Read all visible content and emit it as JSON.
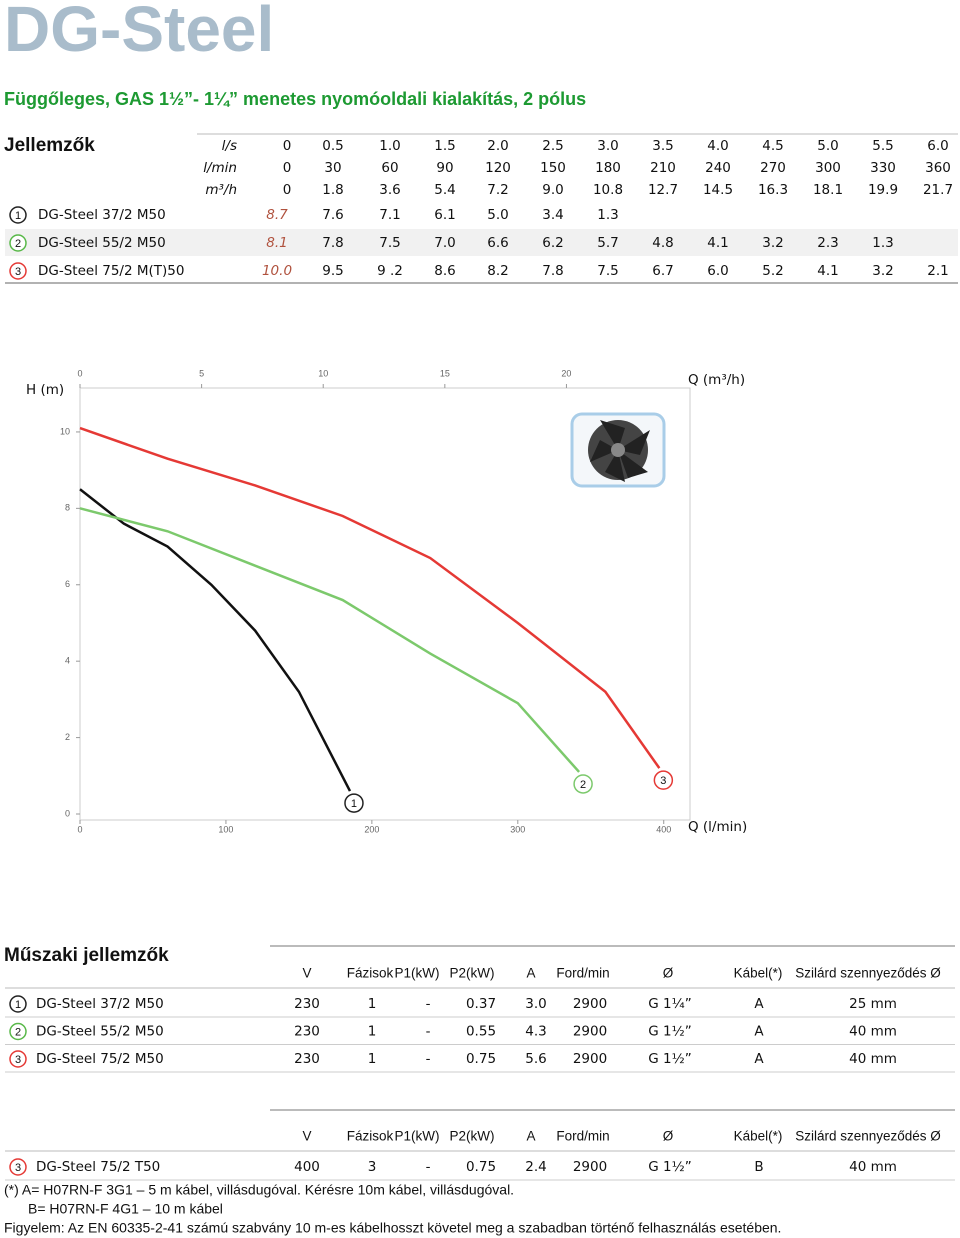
{
  "title": "DG-Steel",
  "subtitle": "Függőleges, GAS 1½”- 1¼” menetes nyomóoldali kialakítás, 2 pólus",
  "table1": {
    "title": "Jellemzők",
    "header_rows": [
      [
        "l/s",
        "0",
        "0.5",
        "1.0",
        "1.5",
        "2.0",
        "2.5",
        "3.0",
        "3.5",
        "4.0",
        "4.5",
        "5.0",
        "5.5",
        "6.0"
      ],
      [
        "l/min",
        "0",
        "30",
        "60",
        "90",
        "120",
        "150",
        "180",
        "210",
        "240",
        "270",
        "300",
        "330",
        "360"
      ],
      [
        "m³/h",
        "0",
        "1.8",
        "3.6",
        "5.4",
        "7.2",
        "9.0",
        "10.8",
        "12.7",
        "14.5",
        "16.3",
        "18.1",
        "19.9",
        "21.7"
      ]
    ],
    "rows": [
      [
        "1",
        "DG-Steel 37/2 M50",
        "8.7",
        "7.6",
        "7.1",
        "6.1",
        "5.0",
        "3.4",
        "1.3"
      ],
      [
        "2",
        "DG-Steel 55/2 M50",
        "8.1",
        "7.8",
        "7.5",
        "7.0",
        "6.6",
        "6.2",
        "5.7",
        "4.8",
        "4.1",
        "3.2",
        "2.3",
        "1.3"
      ],
      [
        "3",
        "DG-Steel 75/2 M(T)50",
        "10.0",
        "9.5",
        "9 .2",
        "8.6",
        "8.2",
        "7.8",
        "7.5",
        "6.7",
        "6.0",
        "5.2",
        "4.1",
        "3.2",
        "2.1"
      ]
    ]
  },
  "chart": {
    "type": "line",
    "y_label": "H (m)",
    "x_label": "Q (l/min)",
    "x2_label": "Q (m³/h)",
    "xlim": [
      0,
      418
    ],
    "xticks": [
      0,
      100,
      200,
      300,
      400
    ],
    "x2lim": [
      0,
      25.08
    ],
    "x2ticks": [
      0,
      5,
      10,
      15,
      20
    ],
    "ylim": [
      0,
      11.15
    ],
    "yticks": [
      0,
      2,
      4,
      6,
      8,
      10
    ],
    "series": [
      {
        "name": "1",
        "color": "#111111",
        "x": [
          0,
          30,
          60,
          90,
          120,
          150,
          185
        ],
        "values": [
          8.5,
          7.6,
          7.0,
          6.0,
          4.8,
          3.2,
          0.6
        ]
      },
      {
        "name": "2",
        "color": "#7cc96c",
        "x": [
          0,
          60,
          120,
          180,
          240,
          300,
          342
        ],
        "values": [
          8.0,
          7.4,
          6.5,
          5.6,
          4.2,
          2.9,
          1.1
        ]
      },
      {
        "name": "3",
        "color": "#e53935",
        "x": [
          0,
          60,
          120,
          180,
          240,
          300,
          360,
          397
        ],
        "values": [
          10.1,
          9.3,
          8.6,
          7.8,
          6.7,
          5.0,
          3.2,
          1.2
        ]
      }
    ]
  },
  "table2": {
    "title": "Műszaki jellemzők",
    "columns": [
      "V",
      "Fázisok",
      "P1(kW)",
      "P2(kW)",
      "A",
      "Ford/min",
      "Ø",
      "Kábel(*)",
      "Szilárd szennyeződés Ø"
    ],
    "rows": [
      [
        "1",
        "DG-Steel 37/2 M50",
        "230",
        "1",
        "-",
        "0.37",
        "3.0",
        "2900",
        "G 1¼”",
        "A",
        "25 mm"
      ],
      [
        "2",
        "DG-Steel 55/2 M50",
        "230",
        "1",
        "-",
        "0.55",
        "4.3",
        "2900",
        "G 1½”",
        "A",
        "40 mm"
      ],
      [
        "3",
        "DG-Steel 75/2 M50",
        "230",
        "1",
        "-",
        "0.75",
        "5.6",
        "2900",
        "G 1½”",
        "A",
        "40 mm"
      ]
    ]
  },
  "table3": {
    "columns": [
      "V",
      "Fázisok",
      "P1(kW)",
      "P2(kW)",
      "A",
      "Ford/min",
      "Ø",
      "Kábel(*)",
      "Szilárd szennyeződés Ø"
    ],
    "rows": [
      [
        "3",
        "DG-Steel 75/2 T50",
        "400",
        "3",
        "-",
        "0.75",
        "2.4",
        "2900",
        "G 1½”",
        "B",
        "40 mm"
      ]
    ]
  },
  "notes": [
    "(*) A= H07RN-F 3G1 – 5 m kábel, villásdugóval. Kérésre 10m kábel, villásdugóval.",
    "B= H07RN-F 4G1 – 10 m kábel",
    "Figyelem: Az EN 60335-2-41 számú szabvány 10 m-es kábelhosszt követel meg a szabadban történő felhasználás esetében."
  ]
}
